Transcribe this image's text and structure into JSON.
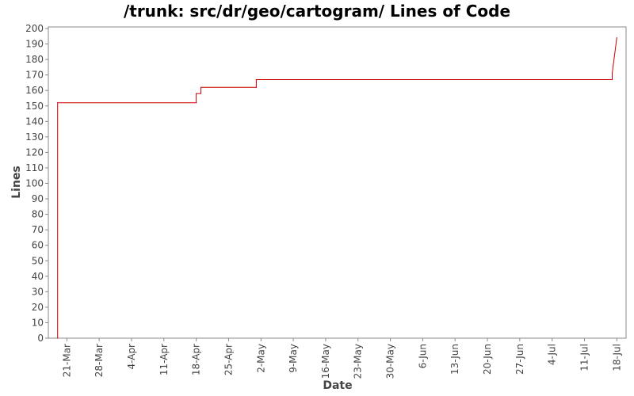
{
  "chart_data": {
    "type": "line",
    "title": "/trunk: src/dr/geo/cartogram/ Lines of Code",
    "xlabel": "Date",
    "ylabel": "Lines",
    "ylim": [
      0,
      200
    ],
    "xlim": [
      "2008-03-17",
      "2008-07-20"
    ],
    "x_tick_labels": [
      "21-Mar",
      "28-Mar",
      "4-Apr",
      "11-Apr",
      "18-Apr",
      "25-Apr",
      "2-May",
      "9-May",
      "16-May",
      "23-May",
      "30-May",
      "6-Jun",
      "13-Jun",
      "20-Jun",
      "27-Jun",
      "4-Jul",
      "11-Jul",
      "18-Jul"
    ],
    "y_ticks": [
      0,
      10,
      20,
      30,
      40,
      50,
      60,
      70,
      80,
      90,
      100,
      110,
      120,
      130,
      140,
      150,
      160,
      170,
      180,
      190,
      200
    ],
    "series_color": "#cc0000",
    "grid": false,
    "series": [
      {
        "x": [
          "2008-03-19",
          "2008-03-19",
          "2008-04-18",
          "2008-04-18",
          "2008-04-19",
          "2008-04-19",
          "2008-05-01",
          "2008-05-01",
          "2008-07-17",
          "2008-07-17",
          "2008-07-18"
        ],
        "values": [
          0,
          152,
          152,
          158,
          158,
          162,
          162,
          167,
          167,
          171,
          194
        ],
        "step": true
      }
    ]
  }
}
